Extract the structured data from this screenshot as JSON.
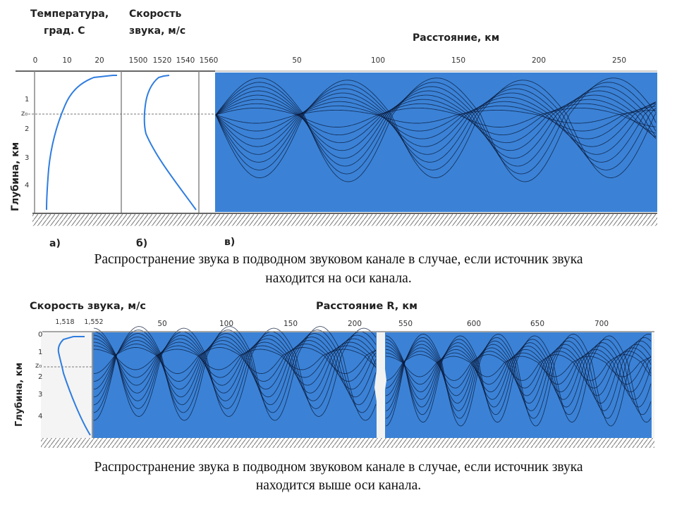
{
  "top": {
    "temp_title_1": "Температура,",
    "temp_title_2": "град. С",
    "speed_title_1": "Скорость",
    "speed_title_2": "звука, м/с",
    "distance_title": "Расстояние, км",
    "depth_label": "Глубина, км",
    "temp_ticks": [
      "0",
      "10",
      "20"
    ],
    "speed_ticks": [
      "1500",
      "1520",
      "1540",
      "1560"
    ],
    "dist_ticks": [
      "50",
      "100",
      "150",
      "200",
      "250"
    ],
    "depth_ticks": [
      "1",
      "z₀",
      "2",
      "3",
      "4"
    ],
    "panel_a": "а)",
    "panel_b": "б)",
    "panel_c": "в)",
    "caption_1": "Распространение звука в подводном звуковом канале в случае, если источник звука",
    "caption_2": "находится на оси канала."
  },
  "bottom": {
    "speed_title": "Скорость  звука, м/с",
    "distance_title": "Расстояние  R,  км",
    "depth_label": "Глубина, км",
    "speed_ticks": [
      "1,518",
      "1,552"
    ],
    "dist_ticks_left": [
      "50",
      "100",
      "150",
      "200"
    ],
    "dist_ticks_right": [
      "550",
      "600",
      "650",
      "700"
    ],
    "depth_ticks": [
      "0",
      "1",
      "z₀",
      "2",
      "3",
      "4"
    ],
    "caption_1": "Распространение звука в подводном звуковом канале в случае, если источник звука",
    "caption_2": "находится выше оси канала."
  },
  "colors": {
    "water": "#3b82d6",
    "rays": "#0a1a3a",
    "profile_line": "#2f7de0",
    "axis": "#555555"
  }
}
